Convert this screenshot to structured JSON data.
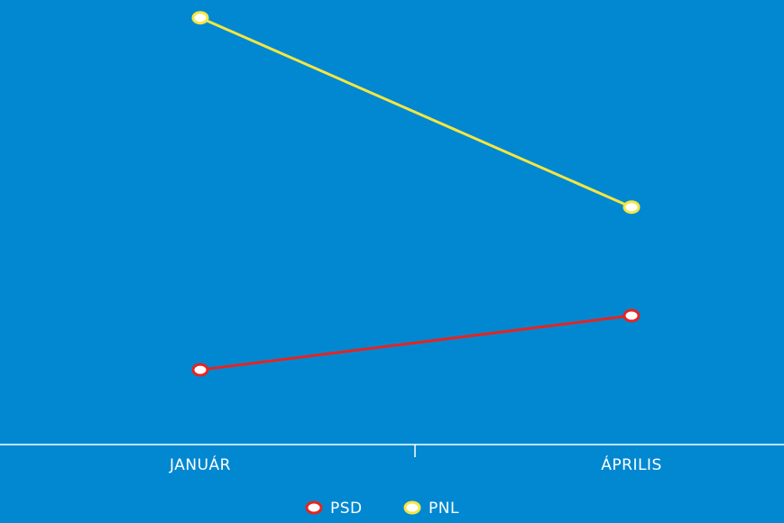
{
  "chart_data": {
    "type": "line",
    "categories": [
      "JANUÁR",
      "ÁPRILIS"
    ],
    "series": [
      {
        "name": "PSD",
        "color": "#e52421",
        "values": [
          8.4,
          14.5
        ]
      },
      {
        "name": "PNL",
        "color": "#f5e642",
        "values": [
          48,
          26.7
        ]
      }
    ],
    "ylim": [
      0,
      50
    ],
    "legend": "bottom"
  }
}
